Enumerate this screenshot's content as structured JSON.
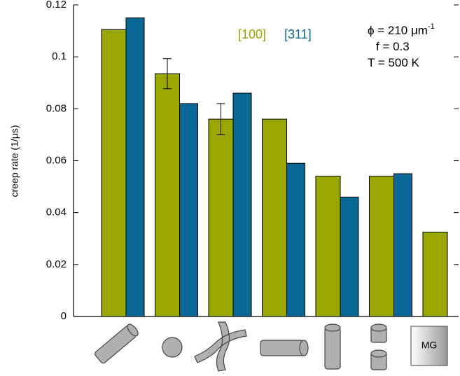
{
  "chart_data": {
    "type": "bar",
    "y_label": "creep rate (1/μs)",
    "categories": [
      null,
      null,
      null,
      null,
      null,
      null,
      "MG"
    ],
    "series": [
      {
        "name": "[100]",
        "color": "#9aa700",
        "values": [
          0.1105,
          0.0935,
          0.076,
          0.076,
          0.054,
          0.054,
          0.0325
        ],
        "errors": [
          null,
          0.0058,
          0.006,
          null,
          null,
          null,
          null
        ]
      },
      {
        "name": "[311]",
        "color": "#0a6896",
        "values": [
          0.115,
          0.082,
          0.086,
          0.059,
          0.046,
          0.055,
          null
        ]
      }
    ],
    "annotations": [
      {
        "text": "ϕ = 210 μm",
        "sup": "-1"
      },
      {
        "text": "f = 0.3"
      },
      {
        "text": "T = 500 K"
      }
    ],
    "ylim": [
      0,
      0.12
    ],
    "yticks": [
      0,
      0.02,
      0.04,
      0.06,
      0.08,
      0.1,
      0.12
    ]
  }
}
